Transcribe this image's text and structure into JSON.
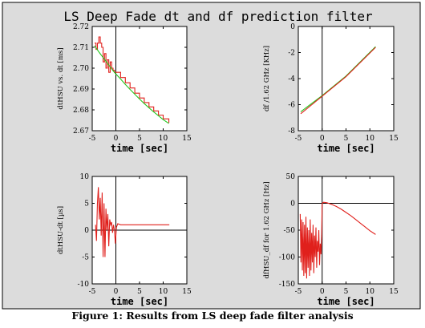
{
  "figure": {
    "title": "LS Deep Fade dt and df prediction filter",
    "caption": "Figure 1: Results from LS deep fade filter analysis"
  },
  "colors": {
    "panel_background": "#dcdcdc",
    "plot_area": "#ffffff",
    "series_red": "#e0201c",
    "series_green": "#22c81e",
    "axes": "#000000"
  },
  "chart_data": [
    {
      "id": "top-left",
      "type": "line",
      "title": "",
      "xlabel": "time [sec]",
      "ylabel": "dtHSU vs. dt [ms]",
      "xlim": [
        -5,
        15
      ],
      "ylim": [
        2.67,
        2.72
      ],
      "xticks": [
        -5,
        0,
        5,
        10,
        15
      ],
      "yticks": [
        2.67,
        2.68,
        2.69,
        2.7,
        2.71,
        2.72
      ],
      "ytick_labels": [
        "2.67",
        "2.68",
        "2.69",
        "2.70",
        "2.71",
        "2.72"
      ],
      "zero_lines": {
        "x": 0
      },
      "series": [
        {
          "color": "#e0201c",
          "step": true,
          "x": [
            -4.5,
            -4.2,
            -3.9,
            -3.6,
            -3.3,
            -3.0,
            -2.7,
            -2.4,
            -2.1,
            -1.8,
            -1.5,
            -1.2,
            -0.9,
            -0.6,
            -0.3,
            0.0,
            1,
            2,
            3,
            4,
            5,
            6,
            7,
            8,
            9,
            10,
            11.2
          ],
          "y": [
            2.712,
            2.709,
            2.712,
            2.715,
            2.712,
            2.71,
            2.703,
            2.707,
            2.7,
            2.704,
            2.698,
            2.703,
            2.7,
            2.699,
            2.698,
            2.698,
            2.6955,
            2.693,
            2.6905,
            2.688,
            2.6857,
            2.6835,
            2.6814,
            2.6795,
            2.6775,
            2.6757,
            2.6738
          ]
        },
        {
          "color": "#22c81e",
          "step": false,
          "x": [
            -4.5,
            -3.5,
            -2.5,
            -1.5,
            -0.5,
            0.0,
            1,
            2,
            3,
            4,
            5,
            6,
            7,
            8,
            9,
            10,
            11.2
          ],
          "y": [
            2.7108,
            2.7075,
            2.7045,
            2.7015,
            2.6985,
            2.6972,
            2.6948,
            2.6922,
            2.6898,
            2.6875,
            2.6852,
            2.683,
            2.681,
            2.679,
            2.6772,
            2.6753,
            2.6735
          ]
        }
      ]
    },
    {
      "id": "top-right",
      "type": "line",
      "title": "",
      "xlabel": "time [sec]",
      "ylabel": "df /1.62 GHz [KHz]",
      "xlim": [
        -5,
        15
      ],
      "ylim": [
        -8,
        0
      ],
      "xticks": [
        -5,
        0,
        5,
        10,
        15
      ],
      "yticks": [
        -8,
        -6,
        -4,
        -2,
        0
      ],
      "ytick_labels": [
        "-8",
        "-6",
        "-4",
        "-2",
        "0"
      ],
      "zero_lines": {
        "x": 0
      },
      "series": [
        {
          "color": "#22c81e",
          "step": false,
          "x": [
            -4.5,
            0,
            5,
            11.2
          ],
          "y": [
            -6.55,
            -5.3,
            -3.8,
            -1.55
          ]
        },
        {
          "color": "#e0201c",
          "step": false,
          "x": [
            -4.5,
            0,
            5,
            11.2
          ],
          "y": [
            -6.7,
            -5.35,
            -3.85,
            -1.6
          ]
        }
      ]
    },
    {
      "id": "bottom-left",
      "type": "line",
      "title": "",
      "xlabel": "time [sec]",
      "ylabel": "dtHSU-dt [µs]",
      "xlim": [
        -5,
        15
      ],
      "ylim": [
        -10,
        10
      ],
      "xticks": [
        -5,
        0,
        5,
        10,
        15
      ],
      "yticks": [
        -10,
        -5,
        0,
        5,
        10
      ],
      "ytick_labels": [
        "-10",
        "-5",
        "0",
        "5",
        "10"
      ],
      "zero_lines": {
        "x": 0,
        "y": 0
      },
      "series": [
        {
          "color": "#e0201c",
          "step": false,
          "x": [
            -4.3,
            -4.1,
            -3.9,
            -3.7,
            -3.5,
            -3.3,
            -3.1,
            -2.9,
            -2.7,
            -2.5,
            -2.3,
            -2.1,
            -1.9,
            -1.7,
            -1.5,
            -1.3,
            -1.1,
            -0.9,
            -0.7,
            -0.5,
            -0.3,
            -0.1,
            0.1,
            0.4,
            1,
            2,
            4,
            6,
            8,
            10,
            11.3
          ],
          "y": [
            1,
            -2,
            5,
            8,
            2,
            6,
            -1,
            7,
            -5,
            5,
            -5,
            4,
            0,
            3,
            -3,
            2,
            1,
            1.5,
            -0.5,
            1,
            0,
            -2.5,
            0.5,
            1.2,
            1,
            1,
            1,
            1,
            1,
            1,
            1
          ]
        }
      ]
    },
    {
      "id": "bottom-right",
      "type": "line",
      "title": "",
      "xlabel": "time [sec]",
      "ylabel": "dfHSU_df for 1.62 GHz [Hz]",
      "xlim": [
        -5,
        15
      ],
      "ylim": [
        -150,
        50
      ],
      "xticks": [
        -5,
        0,
        5,
        10,
        15
      ],
      "yticks": [
        -150,
        -100,
        -50,
        0,
        50
      ],
      "ytick_labels": [
        "-150",
        "-100",
        "-50",
        "0",
        "50"
      ],
      "zero_lines": {
        "x": 0,
        "y": 0
      },
      "series": [
        {
          "color": "#e0201c",
          "step": false,
          "x": [
            -4.6,
            -4.45,
            -4.3,
            -4.15,
            -4.0,
            -3.85,
            -3.7,
            -3.55,
            -3.4,
            -3.25,
            -3.1,
            -2.95,
            -2.8,
            -2.65,
            -2.5,
            -2.35,
            -2.2,
            -2.05,
            -1.9,
            -1.75,
            -1.6,
            -1.45,
            -1.3,
            -1.15,
            -1.0,
            -0.85,
            -0.7,
            -0.55,
            -0.4,
            -0.25,
            -0.1,
            0.0,
            0.3,
            1,
            2,
            3,
            4,
            5,
            6,
            7,
            8,
            9,
            10,
            11.2
          ],
          "y": [
            -20,
            -110,
            -30,
            -125,
            -35,
            -135,
            -40,
            -130,
            -25,
            -140,
            -45,
            -120,
            -50,
            -135,
            -30,
            -125,
            -55,
            -110,
            -40,
            -130,
            -60,
            -100,
            -45,
            -120,
            -70,
            -90,
            -50,
            -115,
            -75,
            -95,
            -60,
            0,
            2,
            1,
            -2,
            -6,
            -11,
            -17,
            -23,
            -30,
            -37,
            -44,
            -51,
            -58
          ]
        }
      ]
    }
  ]
}
